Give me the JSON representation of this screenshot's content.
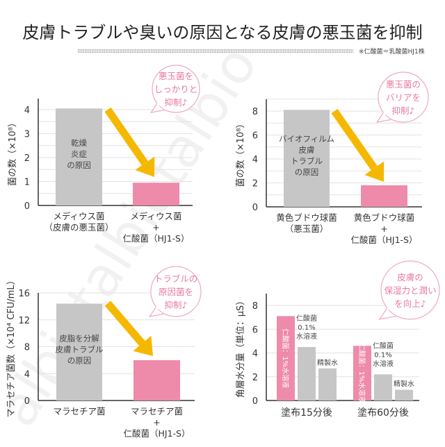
{
  "title": "皮膚トラブルや臭いの原因となる皮膚の悪玉菌を抑制",
  "note": "※仁酸菌＝乳酸菌HJ1株",
  "watermark": "albiotalbiotalbio",
  "colors": {
    "gray_bar": "#c6c6c6",
    "pink_bar": "#ee8aaa",
    "arrow": "#f5b800",
    "bubble": "#f0a8c0",
    "bubble_text": "#e87a9e"
  },
  "chart_data": [
    {
      "type": "bar",
      "ylabel": "菌の数（×10⁸）",
      "ylim": [
        0,
        4.5
      ],
      "yticks": [
        0,
        1,
        2,
        3,
        4
      ],
      "grid": true,
      "categories": [
        [
          "メディウス菌",
          "（皮膚の悪玉菌）"
        ],
        [
          "メディウス菌",
          "+",
          "仁酸菌（HJ1-S）"
        ]
      ],
      "values": [
        4.05,
        0.95
      ],
      "bar_colors": [
        "#c6c6c6",
        "#ee8aaa"
      ],
      "bar_labels": [
        [
          "乾燥",
          "炎症",
          "の原因"
        ],
        []
      ],
      "bubble": [
        "悪玉菌を",
        "しっかりと",
        "抑制♪"
      ]
    },
    {
      "type": "bar",
      "ylabel": "菌の数（×10⁸）",
      "ylim": [
        0,
        9
      ],
      "yticks": [
        0,
        2,
        4,
        6,
        8
      ],
      "grid": true,
      "categories": [
        [
          "黄色ブドウ球菌",
          "（悪玉菌）"
        ],
        [
          "黄色ブドウ球菌",
          "+",
          "仁酸菌（HJ1-S）"
        ]
      ],
      "values": [
        8.1,
        1.8
      ],
      "bar_colors": [
        "#c6c6c6",
        "#ee8aaa"
      ],
      "bar_labels": [
        [
          "バイオフィルム",
          "皮膚",
          "トラブル",
          "の原因"
        ],
        []
      ],
      "bubble": [
        "悪玉菌の",
        "バリアを",
        "抑制♪"
      ]
    },
    {
      "type": "bar",
      "ylabel": "マラセチア菌数（×10⁴ CFU/mL）",
      "ylim": [
        0,
        16
      ],
      "yticks": [
        0,
        4,
        8,
        12,
        16
      ],
      "grid": true,
      "categories": [
        [
          "マラセチア菌"
        ],
        [
          "マラセチア菌",
          "+",
          "仁酸菌（HJ1-S）"
        ]
      ],
      "values": [
        14.4,
        6.0
      ],
      "bar_colors": [
        "#c6c6c6",
        "#ee8aaa"
      ],
      "bar_labels": [
        [
          "皮脂を分解",
          "皮膚トラブル",
          "の原因"
        ],
        []
      ],
      "bubble": [
        "トラブルの",
        "原因菌を",
        "抑制♪"
      ]
    },
    {
      "type": "bar",
      "ylabel": "角層水分量（単位：μS）",
      "ylim": [
        0,
        9
      ],
      "yticks": [
        0,
        2,
        4,
        6,
        8
      ],
      "grid": true,
      "categories": [
        "塗布15分後",
        "塗布60分後"
      ],
      "series": [
        {
          "name": "仁酸菌：1%水溶液",
          "values": [
            7.1,
            4.6
          ],
          "color": "#ee8aaa"
        },
        {
          "name": [
            "仁酸菌",
            "0.1%",
            "水溶液"
          ],
          "values": [
            4.5,
            2.2
          ],
          "color": "#c6c6c6"
        },
        {
          "name": "精製水",
          "values": [
            2.7,
            0.9
          ],
          "color": "#c6c6c6"
        }
      ],
      "bubble": [
        "皮膚の",
        "保湿力と潤い",
        "を向上♪"
      ]
    }
  ]
}
